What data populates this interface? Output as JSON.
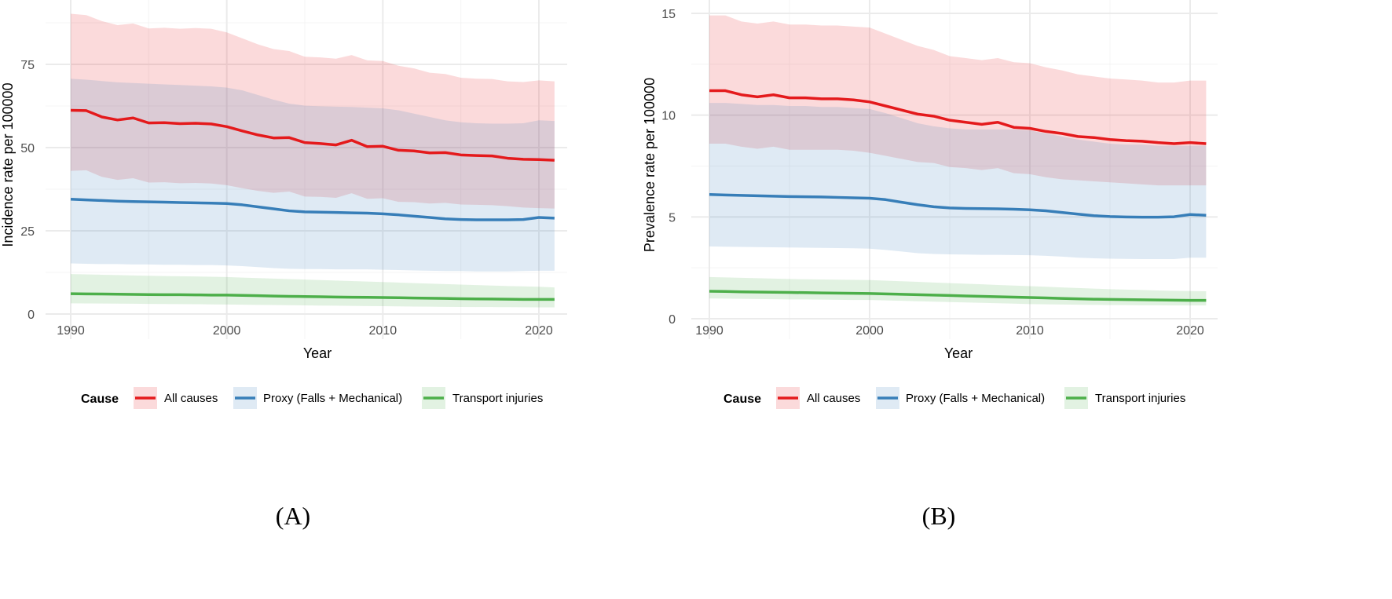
{
  "colors": {
    "All causes": "#e41a1c",
    "Proxy (Falls + Mechanical)": "#377eb8",
    "Transport injuries": "#4daf4a"
  },
  "legend": {
    "title": "Cause",
    "items": [
      "All causes",
      "Proxy (Falls + Mechanical)",
      "Transport injuries"
    ]
  },
  "chart_data": [
    {
      "type": "line",
      "panel_label": "(A)",
      "xlabel": "Year",
      "ylabel": "Incidence rate per 100000",
      "xlim": [
        1990,
        2021
      ],
      "ylim": [
        0,
        90
      ],
      "xticks": [
        1990,
        2000,
        2010,
        2020
      ],
      "yticks": [
        0,
        25,
        50,
        75
      ],
      "grid": true,
      "legend_position": "bottom",
      "x": [
        1990,
        1991,
        1992,
        1993,
        1994,
        1995,
        1996,
        1997,
        1998,
        1999,
        2000,
        2001,
        2002,
        2003,
        2004,
        2005,
        2006,
        2007,
        2008,
        2009,
        2010,
        2011,
        2012,
        2013,
        2014,
        2015,
        2016,
        2017,
        2018,
        2019,
        2020,
        2021
      ],
      "series": [
        {
          "name": "All causes",
          "values": [
            61.2,
            61.1,
            59.2,
            58.3,
            58.9,
            57.4,
            57.5,
            57.2,
            57.3,
            57.1,
            56.3,
            55.0,
            53.8,
            52.9,
            53.0,
            51.5,
            51.2,
            50.8,
            52.2,
            50.3,
            50.4,
            49.2,
            49.0,
            48.4,
            48.5,
            47.8,
            47.6,
            47.5,
            46.8,
            46.5,
            46.4,
            46.2
          ],
          "upper": [
            90.2,
            89.8,
            88.0,
            86.8,
            87.3,
            85.8,
            86.0,
            85.7,
            85.9,
            85.7,
            84.6,
            82.8,
            81.0,
            79.6,
            79.0,
            77.3,
            77.1,
            76.7,
            77.8,
            76.2,
            76.0,
            74.6,
            73.8,
            72.5,
            72.1,
            71.0,
            70.7,
            70.6,
            69.9,
            69.7,
            70.2,
            69.9
          ],
          "lower": [
            43.0,
            43.2,
            41.2,
            40.3,
            40.8,
            39.5,
            39.6,
            39.3,
            39.4,
            39.2,
            38.7,
            37.8,
            37.0,
            36.4,
            36.8,
            35.3,
            35.2,
            34.9,
            36.3,
            34.6,
            34.8,
            33.7,
            33.6,
            33.2,
            33.4,
            32.9,
            32.8,
            32.7,
            32.4,
            32.0,
            31.8,
            31.7
          ]
        },
        {
          "name": "Proxy (Falls + Mechanical)",
          "values": [
            34.5,
            34.3,
            34.1,
            33.9,
            33.8,
            33.7,
            33.6,
            33.5,
            33.4,
            33.3,
            33.2,
            32.8,
            32.2,
            31.6,
            31.0,
            30.7,
            30.6,
            30.5,
            30.4,
            30.3,
            30.1,
            29.8,
            29.4,
            29.0,
            28.6,
            28.4,
            28.3,
            28.3,
            28.3,
            28.4,
            29.0,
            28.8
          ],
          "upper": [
            70.7,
            70.4,
            70.0,
            69.6,
            69.4,
            69.2,
            69.0,
            68.8,
            68.6,
            68.4,
            68.0,
            67.2,
            65.8,
            64.4,
            63.2,
            62.6,
            62.4,
            62.3,
            62.2,
            62.0,
            61.8,
            61.2,
            60.2,
            59.2,
            58.2,
            57.6,
            57.3,
            57.2,
            57.2,
            57.3,
            58.2,
            58.0
          ],
          "lower": [
            15.2,
            15.1,
            15.0,
            15.0,
            14.9,
            14.9,
            14.8,
            14.8,
            14.7,
            14.7,
            14.6,
            14.4,
            14.1,
            13.8,
            13.6,
            13.5,
            13.5,
            13.4,
            13.4,
            13.4,
            13.3,
            13.2,
            13.1,
            13.0,
            12.9,
            12.9,
            12.8,
            12.8,
            12.8,
            12.9,
            13.0,
            13.0
          ]
        },
        {
          "name": "Transport injuries",
          "values": [
            6.1,
            6.05,
            6.0,
            5.95,
            5.9,
            5.85,
            5.8,
            5.8,
            5.75,
            5.7,
            5.7,
            5.6,
            5.5,
            5.4,
            5.3,
            5.25,
            5.2,
            5.1,
            5.05,
            5.0,
            4.95,
            4.9,
            4.8,
            4.75,
            4.7,
            4.6,
            4.55,
            4.5,
            4.45,
            4.4,
            4.4,
            4.4
          ],
          "upper": [
            12.0,
            11.9,
            11.8,
            11.7,
            11.6,
            11.5,
            11.4,
            11.35,
            11.3,
            11.2,
            11.1,
            10.95,
            10.8,
            10.65,
            10.5,
            10.35,
            10.2,
            10.05,
            9.9,
            9.75,
            9.6,
            9.45,
            9.3,
            9.15,
            9.0,
            8.85,
            8.7,
            8.55,
            8.4,
            8.3,
            8.2,
            8.0
          ],
          "lower": [
            3.2,
            3.18,
            3.15,
            3.12,
            3.1,
            3.05,
            3.0,
            2.98,
            2.95,
            2.9,
            2.85,
            2.8,
            2.75,
            2.7,
            2.65,
            2.6,
            2.55,
            2.5,
            2.45,
            2.4,
            2.35,
            2.3,
            2.25,
            2.2,
            2.15,
            2.12,
            2.1,
            2.08,
            2.05,
            2.02,
            2.0,
            2.0
          ]
        }
      ]
    },
    {
      "type": "line",
      "panel_label": "(B)",
      "xlabel": "Year",
      "ylabel": "Prevalence rate per 100000",
      "xlim": [
        1990,
        2021
      ],
      "ylim": [
        0,
        15
      ],
      "xticks": [
        1990,
        2000,
        2010,
        2020
      ],
      "yticks": [
        0,
        5,
        10,
        15
      ],
      "grid": true,
      "legend_position": "bottom",
      "x": [
        1990,
        1991,
        1992,
        1993,
        1994,
        1995,
        1996,
        1997,
        1998,
        1999,
        2000,
        2001,
        2002,
        2003,
        2004,
        2005,
        2006,
        2007,
        2008,
        2009,
        2010,
        2011,
        2012,
        2013,
        2014,
        2015,
        2016,
        2017,
        2018,
        2019,
        2020,
        2021
      ],
      "series": [
        {
          "name": "All causes",
          "values": [
            11.2,
            11.2,
            11.0,
            10.9,
            11.0,
            10.85,
            10.85,
            10.8,
            10.8,
            10.75,
            10.65,
            10.45,
            10.25,
            10.05,
            9.95,
            9.75,
            9.65,
            9.55,
            9.65,
            9.4,
            9.35,
            9.2,
            9.1,
            8.95,
            8.9,
            8.8,
            8.75,
            8.72,
            8.65,
            8.6,
            8.65,
            8.6
          ],
          "upper": [
            14.9,
            14.9,
            14.6,
            14.5,
            14.6,
            14.45,
            14.45,
            14.4,
            14.4,
            14.35,
            14.3,
            14.0,
            13.7,
            13.4,
            13.2,
            12.9,
            12.8,
            12.7,
            12.8,
            12.6,
            12.55,
            12.35,
            12.2,
            12.0,
            11.9,
            11.8,
            11.75,
            11.7,
            11.6,
            11.6,
            11.7,
            11.7
          ],
          "lower": [
            8.6,
            8.6,
            8.45,
            8.35,
            8.45,
            8.3,
            8.3,
            8.3,
            8.3,
            8.25,
            8.15,
            8.0,
            7.85,
            7.7,
            7.65,
            7.45,
            7.4,
            7.3,
            7.4,
            7.15,
            7.1,
            6.95,
            6.85,
            6.8,
            6.75,
            6.7,
            6.65,
            6.6,
            6.55,
            6.55,
            6.55,
            6.55
          ]
        },
        {
          "name": "Proxy (Falls + Mechanical)",
          "values": [
            6.1,
            6.08,
            6.06,
            6.04,
            6.02,
            6.0,
            5.99,
            5.98,
            5.96,
            5.94,
            5.92,
            5.85,
            5.72,
            5.6,
            5.5,
            5.44,
            5.42,
            5.41,
            5.4,
            5.38,
            5.35,
            5.3,
            5.22,
            5.14,
            5.06,
            5.02,
            5.0,
            4.99,
            4.99,
            5.01,
            5.12,
            5.08
          ],
          "upper": [
            10.6,
            10.6,
            10.55,
            10.5,
            10.5,
            10.45,
            10.45,
            10.4,
            10.4,
            10.35,
            10.3,
            10.1,
            9.85,
            9.6,
            9.45,
            9.35,
            9.3,
            9.3,
            9.3,
            9.3,
            9.25,
            9.1,
            8.95,
            8.8,
            8.7,
            8.6,
            8.55,
            8.55,
            8.5,
            8.5,
            8.5,
            8.5
          ],
          "lower": [
            3.55,
            3.54,
            3.53,
            3.52,
            3.51,
            3.5,
            3.49,
            3.48,
            3.47,
            3.46,
            3.44,
            3.38,
            3.3,
            3.22,
            3.18,
            3.16,
            3.15,
            3.14,
            3.14,
            3.13,
            3.12,
            3.09,
            3.05,
            3.0,
            2.97,
            2.95,
            2.94,
            2.93,
            2.93,
            2.93,
            3.0,
            3.0
          ]
        },
        {
          "name": "Transport injuries",
          "values": [
            1.35,
            1.34,
            1.32,
            1.31,
            1.3,
            1.29,
            1.28,
            1.27,
            1.26,
            1.25,
            1.24,
            1.22,
            1.2,
            1.18,
            1.16,
            1.14,
            1.12,
            1.1,
            1.08,
            1.06,
            1.04,
            1.02,
            1.0,
            0.98,
            0.96,
            0.95,
            0.94,
            0.93,
            0.92,
            0.91,
            0.9,
            0.9
          ],
          "upper": [
            2.05,
            2.03,
            2.01,
            1.99,
            1.97,
            1.95,
            1.94,
            1.93,
            1.92,
            1.91,
            1.9,
            1.87,
            1.84,
            1.81,
            1.78,
            1.75,
            1.72,
            1.69,
            1.66,
            1.63,
            1.6,
            1.57,
            1.54,
            1.51,
            1.48,
            1.45,
            1.43,
            1.41,
            1.39,
            1.37,
            1.36,
            1.35
          ],
          "lower": [
            1.0,
            0.99,
            0.98,
            0.97,
            0.96,
            0.95,
            0.95,
            0.94,
            0.93,
            0.92,
            0.92,
            0.9,
            0.88,
            0.86,
            0.84,
            0.82,
            0.8,
            0.78,
            0.76,
            0.74,
            0.72,
            0.71,
            0.7,
            0.69,
            0.68,
            0.67,
            0.67,
            0.66,
            0.66,
            0.65,
            0.65,
            0.65
          ]
        }
      ]
    }
  ]
}
